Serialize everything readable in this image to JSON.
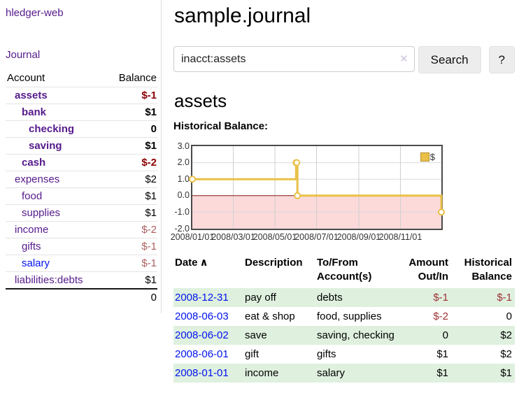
{
  "colors": {
    "purple": "#551a8b",
    "blue": "#0013ee",
    "neg-strong": "#8b0000",
    "neg-muted": "#ab5f5f",
    "neg-table": "#9e3132",
    "row-green": "#dff0df"
  },
  "app": {
    "title": "hledger-web"
  },
  "sidebar": {
    "journal_link": "Journal",
    "headers": {
      "account": "Account",
      "balance": "Balance"
    },
    "accounts": [
      {
        "name": "assets",
        "balance": "$-1"
      },
      {
        "name": "bank",
        "balance": "$1"
      },
      {
        "name": "checking",
        "balance": "0"
      },
      {
        "name": "saving",
        "balance": "$1"
      },
      {
        "name": "cash",
        "balance": "$-2"
      },
      {
        "name": "expenses",
        "balance": "$2"
      },
      {
        "name": "food",
        "balance": "$1"
      },
      {
        "name": "supplies",
        "balance": "$1"
      },
      {
        "name": "income",
        "balance": "$-2"
      },
      {
        "name": "gifts",
        "balance": "$-1"
      },
      {
        "name": "salary",
        "balance": "$-1"
      },
      {
        "name": "liabilities:debts",
        "balance": "$1"
      }
    ],
    "total": "0"
  },
  "main": {
    "title": "sample.journal",
    "search": {
      "value": "inacct:assets",
      "clear_icon": "✕",
      "button_label": "Search",
      "help_label": "?"
    },
    "account_heading": "assets",
    "chart_label": "Historical Balance:"
  },
  "chart_data": {
    "type": "line",
    "step": true,
    "title": "Historical Balance",
    "series": [
      {
        "name": "$",
        "color": "#e9c048",
        "points": [
          [
            "2008-01-01",
            1
          ],
          [
            "2008-06-01",
            2
          ],
          [
            "2008-06-02",
            2
          ],
          [
            "2008-06-03",
            0
          ],
          [
            "2008-12-31",
            -1
          ]
        ]
      }
    ],
    "x_range": [
      "2008-01-01",
      "2008-12-31"
    ],
    "x_ticks": [
      {
        "v": "2008-01-01",
        "label": "2008/01/01"
      },
      {
        "v": "2008-03-01",
        "label": "2008/03/01"
      },
      {
        "v": "2008-05-01",
        "label": "2008/05/01"
      },
      {
        "v": "2008-07-01",
        "label": "2008/07/01"
      },
      {
        "v": "2008-09-01",
        "label": "2008/09/01"
      },
      {
        "v": "2008-11-01",
        "label": "2008/11/01"
      }
    ],
    "y_ticks": [
      -2,
      -1,
      0,
      1,
      2,
      3
    ],
    "y_tick_labels": [
      "-2.0",
      "-1.0",
      "0.0",
      "1.0",
      "2.0",
      "3.0"
    ],
    "ylim": [
      -2,
      3
    ],
    "grid": true,
    "legend": {
      "label": "$",
      "position": "top-right"
    },
    "negative_region_color": "#fcdada",
    "zero_line_color": "#8b1b1b"
  },
  "register": {
    "headers": {
      "date": "Date",
      "description": "Description",
      "accounts": "To/From Account(s)",
      "amount": "Amount Out/In",
      "balance": "Historical Balance"
    },
    "sort_icon": "∧",
    "rows": [
      {
        "date": "2008-12-31",
        "description": "pay off",
        "accounts": "debts",
        "amount": "$-1",
        "balance": "$-1"
      },
      {
        "date": "2008-06-03",
        "description": "eat & shop",
        "accounts": "food, supplies",
        "amount": "$-2",
        "balance": "0"
      },
      {
        "date": "2008-06-02",
        "description": "save",
        "accounts": "saving, checking",
        "amount": "0",
        "balance": "$2"
      },
      {
        "date": "2008-06-01",
        "description": "gift",
        "accounts": "gifts",
        "amount": "$1",
        "balance": "$2"
      },
      {
        "date": "2008-01-01",
        "description": "income",
        "accounts": "salary",
        "amount": "$1",
        "balance": "$1"
      }
    ]
  }
}
